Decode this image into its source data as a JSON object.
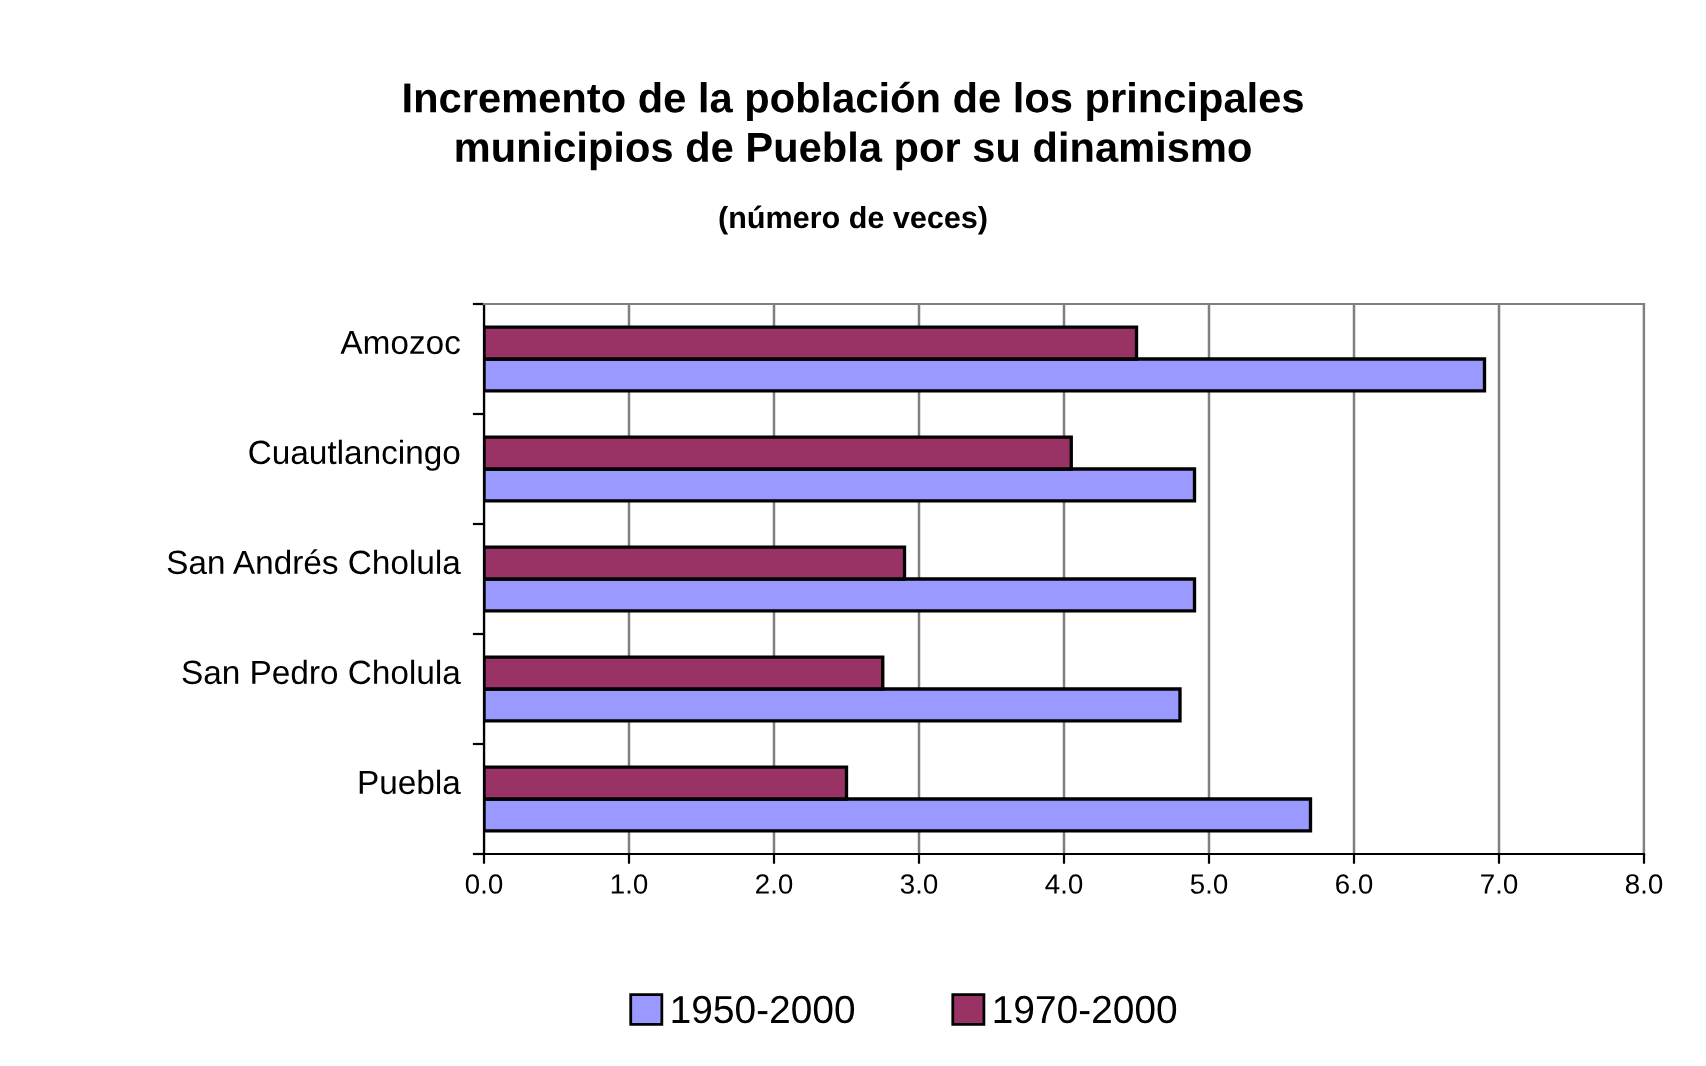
{
  "chart_data": {
    "type": "bar",
    "orientation": "horizontal",
    "title": "Incremento de la población de los principales\nmunicipios de Puebla por su dinamismo",
    "subtitle": "(número de veces)",
    "categories": [
      "Amozoc",
      "Cuautlancingo",
      "San Andrés Cholula",
      "San Pedro Cholula",
      "Puebla"
    ],
    "series": [
      {
        "name": "1950-2000",
        "color": "#9999ff",
        "values": [
          6.9,
          4.9,
          4.9,
          4.8,
          5.7
        ]
      },
      {
        "name": "1970-2000",
        "color": "#993366",
        "values": [
          4.5,
          4.05,
          2.9,
          2.75,
          2.5
        ]
      }
    ],
    "xlim": [
      0,
      8
    ],
    "xticks": [
      {
        "value": 0,
        "label": "0.0"
      },
      {
        "value": 1,
        "label": "1.0"
      },
      {
        "value": 2,
        "label": "2.0"
      },
      {
        "value": 3,
        "label": "3.0"
      },
      {
        "value": 4,
        "label": "4.0"
      },
      {
        "value": 5,
        "label": "5.0"
      },
      {
        "value": 6,
        "label": "6.0"
      },
      {
        "value": 7,
        "label": "7.0"
      },
      {
        "value": 8,
        "label": "8.0"
      }
    ],
    "grid": "x",
    "legend": "bottom"
  }
}
